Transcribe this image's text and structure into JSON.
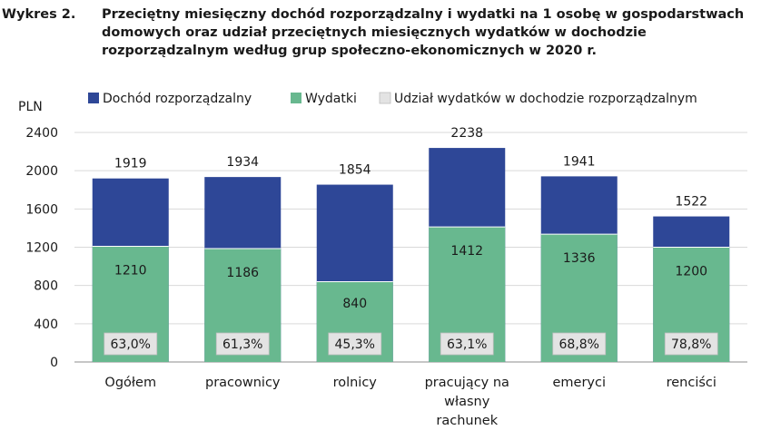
{
  "header": {
    "prefix": "Wykres 2.",
    "title": "Przeciętny miesięczny dochód rozporządzalny i wydatki na 1 osobę w gospodarstwach domowych oraz udział przeciętnych miesięcznych wydatków w dochodzie rozporządzalnym według grup społeczno-ekonomicznych w 2020 r."
  },
  "colors": {
    "income": "#2e4797",
    "expenses": "#68b88f",
    "share_box": "#e3e3e3"
  },
  "chart_data": {
    "type": "bar",
    "ylabel": "PLN",
    "ylim": [
      0,
      2400
    ],
    "yticks": [
      "0",
      "400",
      "800",
      "1200",
      "1600",
      "2000",
      "2400"
    ],
    "categories": [
      "Ogółem",
      "pracownicy",
      "rolnicy",
      "pracujący na własny rachunek",
      "emeryci",
      "renciści"
    ],
    "category_lines": [
      [
        "Ogółem"
      ],
      [
        "pracownicy"
      ],
      [
        "rolnicy"
      ],
      [
        "pracujący na",
        "własny",
        "rachunek"
      ],
      [
        "emeryci"
      ],
      [
        "renciści"
      ]
    ],
    "legend": {
      "income": "Dochód rozporządzalny",
      "expenses": "Wydatki",
      "share": "Udział wydatków w dochodzie rozporządzalnym"
    },
    "series": [
      {
        "name": "Dochód rozporządzalny",
        "values": [
          1919,
          1934,
          1854,
          2238,
          1941,
          1522
        ]
      },
      {
        "name": "Wydatki",
        "values": [
          1210,
          1186,
          840,
          1412,
          1336,
          1200
        ]
      }
    ],
    "income_labels": [
      "1919",
      "1934",
      "1854",
      "2238",
      "1941",
      "1522"
    ],
    "expense_labels": [
      "1210",
      "1186",
      "840",
      "1412",
      "1336",
      "1200"
    ],
    "share_labels": [
      "63,0%",
      "61,3%",
      "45,3%",
      "63,1%",
      "68,8%",
      "78,8%"
    ]
  }
}
